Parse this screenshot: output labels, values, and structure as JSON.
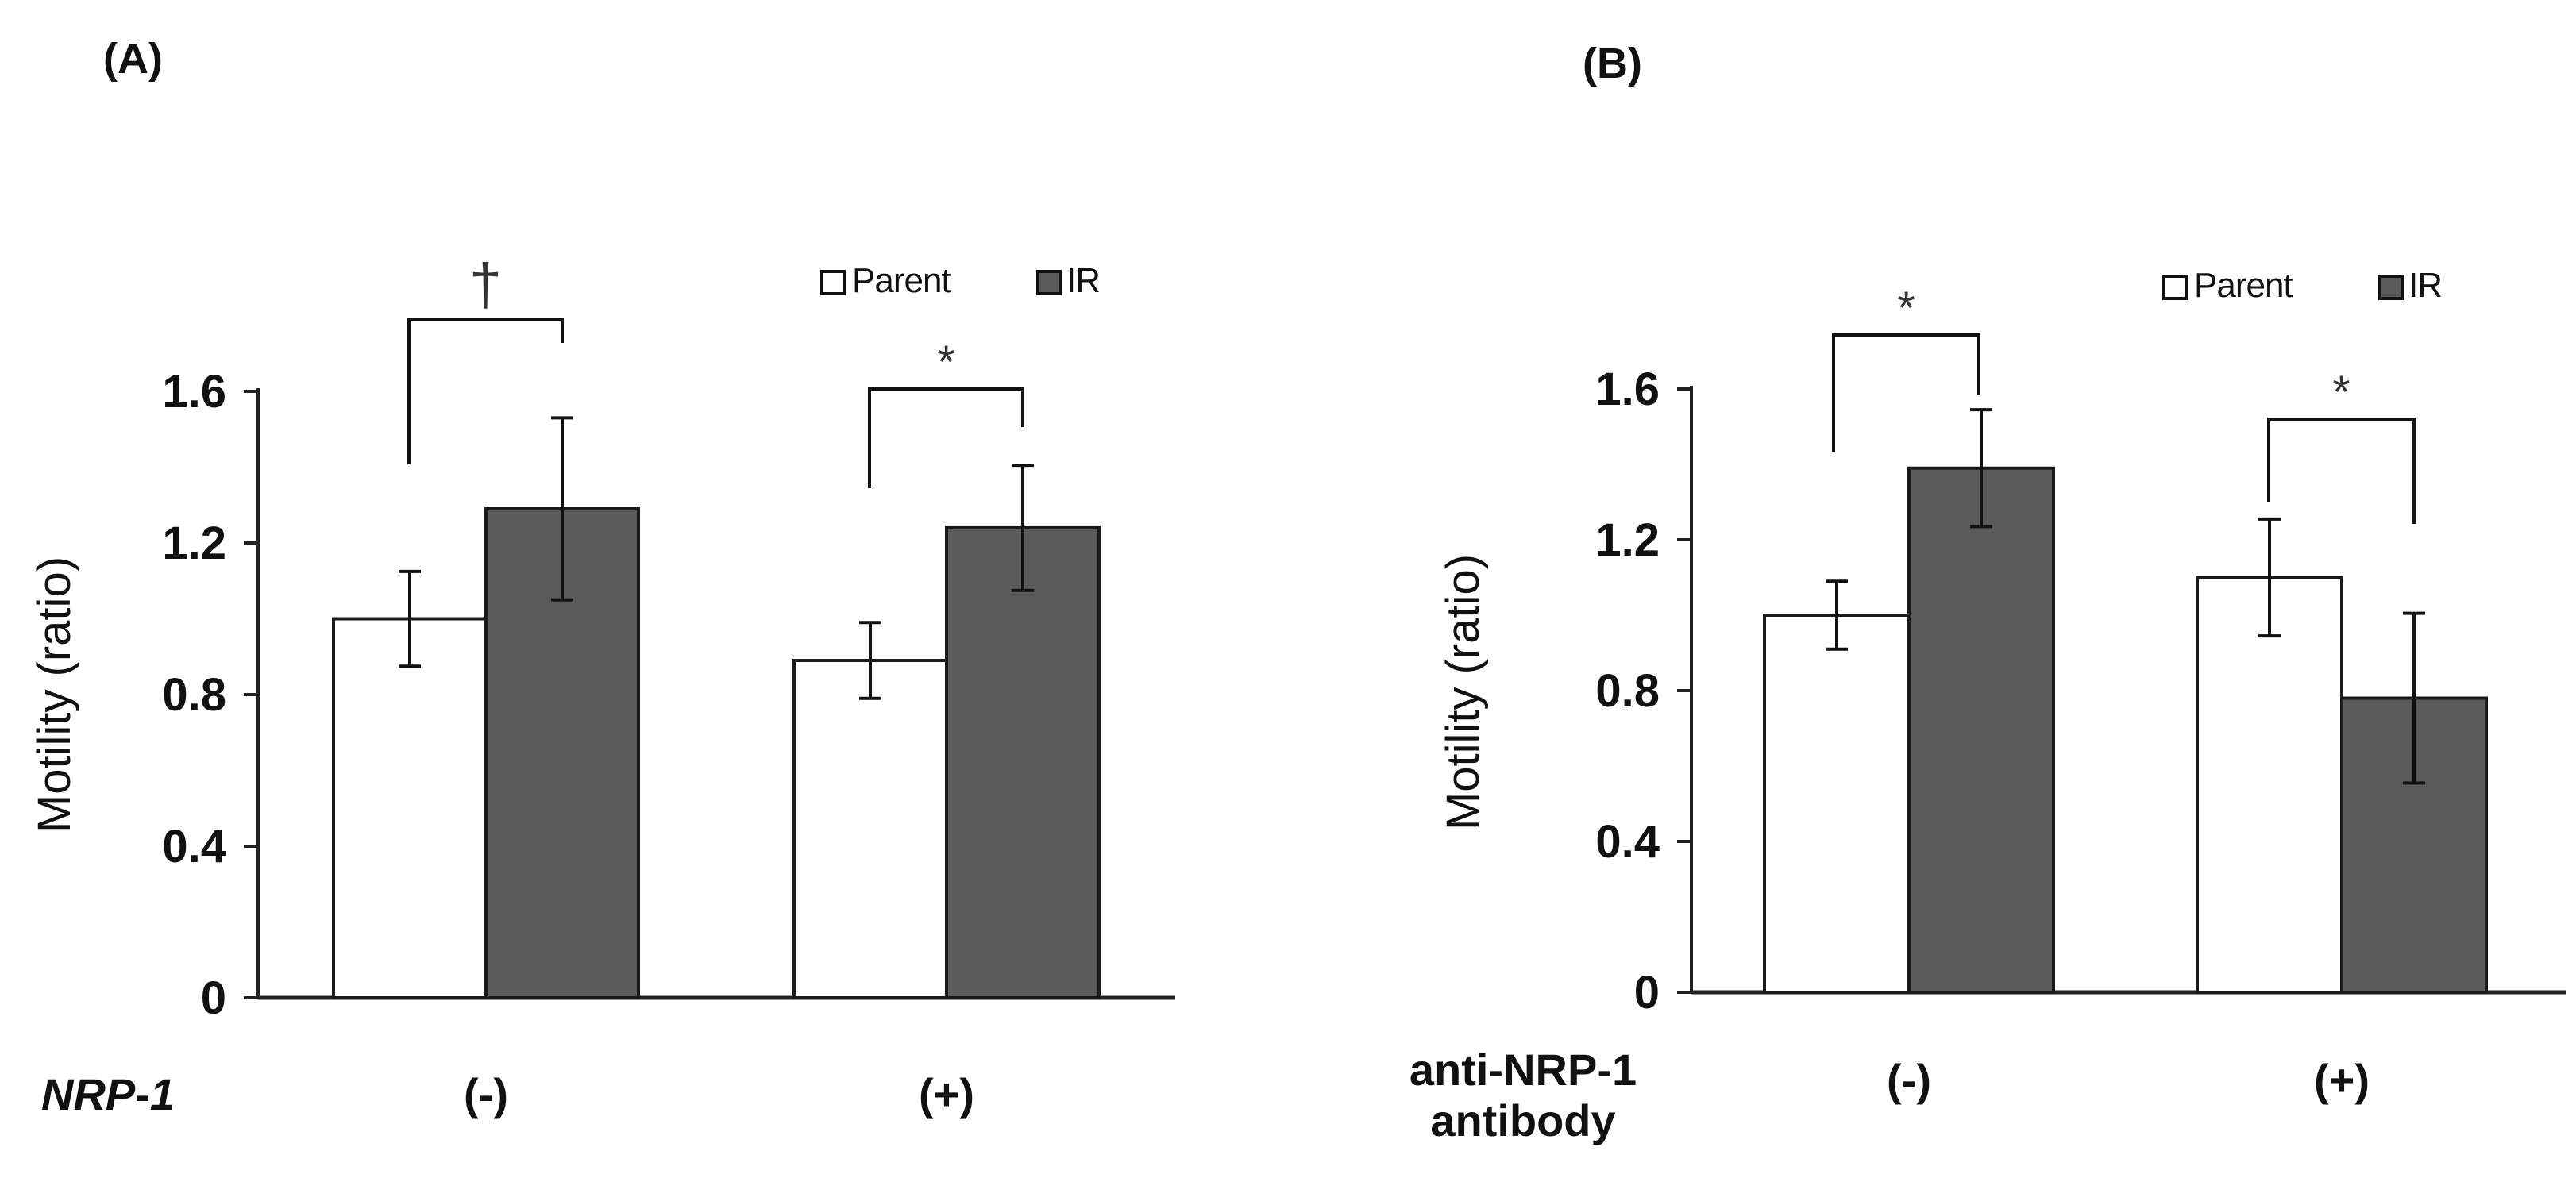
{
  "chart_data": [
    {
      "panel": "(A)",
      "type": "bar",
      "ylabel": "Motility (ratio)",
      "xlabel": "",
      "ylim": [
        0,
        1.6
      ],
      "yticks": [
        "0",
        "0.4",
        "0.8",
        "1.2",
        "1.6"
      ],
      "row_label": "NRP-1",
      "row_label_italic": true,
      "categories": [
        "(-)",
        "(+)"
      ],
      "series": [
        {
          "name": "Parent",
          "color": "#ffffff",
          "values": [
            1.0,
            0.89
          ],
          "errors": [
            0.125,
            0.1
          ]
        },
        {
          "name": "IR",
          "color": "#5a5a5a",
          "values": [
            1.29,
            1.24
          ],
          "errors": [
            0.24,
            0.165
          ]
        }
      ],
      "significance": [
        "†",
        "*"
      ],
      "legend": {
        "placement": "top-right",
        "entries": [
          "Parent",
          "IR"
        ]
      }
    },
    {
      "panel": "(B)",
      "type": "bar",
      "ylabel": "Motility (ratio)",
      "xlabel": "",
      "ylim": [
        0,
        1.6
      ],
      "yticks": [
        "0",
        "0.4",
        "0.8",
        "1.2",
        "1.6"
      ],
      "row_label": "anti-NRP-1 antibody",
      "row_label_lines": [
        "anti-NRP-1",
        "antibody"
      ],
      "row_label_italic": false,
      "categories": [
        "(-)",
        "(+)"
      ],
      "series": [
        {
          "name": "Parent",
          "color": "#ffffff",
          "values": [
            1.0,
            1.1
          ],
          "errors": [
            0.09,
            0.155
          ]
        },
        {
          "name": "IR",
          "color": "#5a5a5a",
          "values": [
            1.39,
            0.78
          ],
          "errors": [
            0.155,
            0.225
          ]
        }
      ],
      "significance": [
        "*",
        "*"
      ],
      "legend": {
        "placement": "top-right",
        "entries": [
          "Parent",
          "IR"
        ]
      }
    }
  ]
}
